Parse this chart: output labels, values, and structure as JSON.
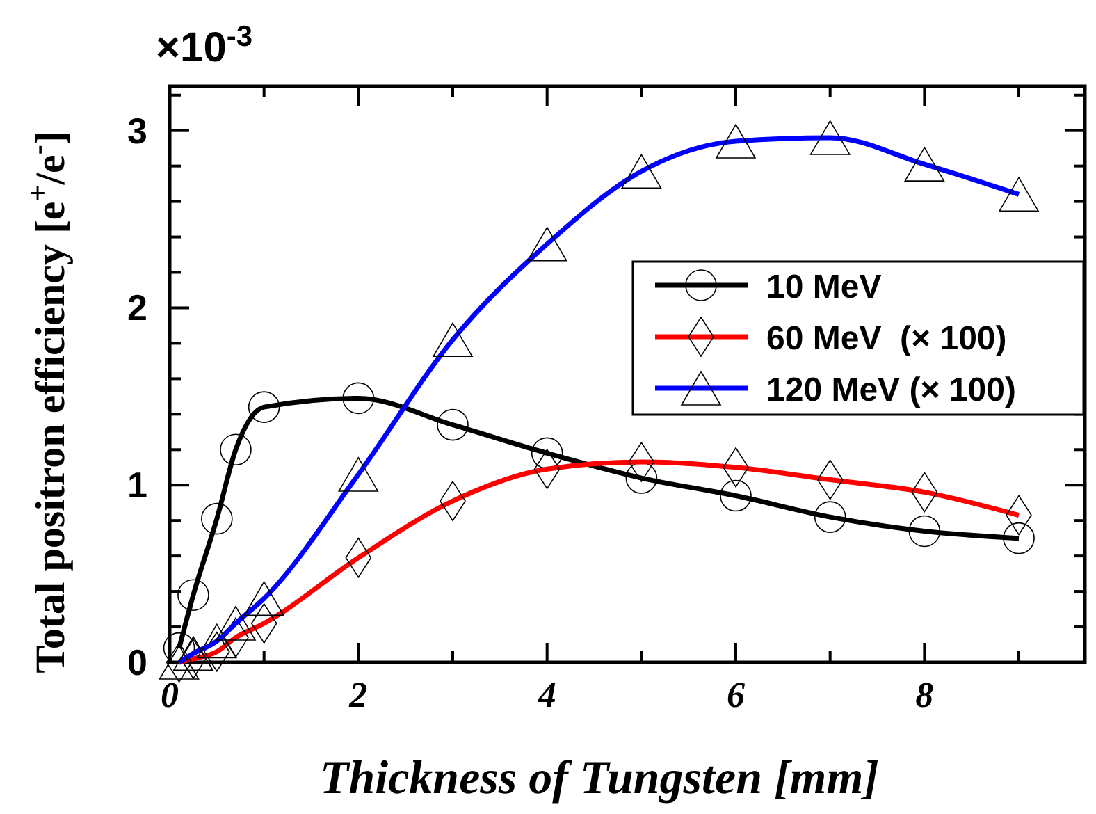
{
  "chart_data": {
    "type": "line",
    "xlabel": "Thickness of Tungsten [mm]",
    "ylabel": "Total positron efficiency [e$^{+}$/e$^{-}$]",
    "annotations": [
      "×10$^{-3}$"
    ],
    "x": [
      0.1,
      0.25,
      0.5,
      0.7,
      1,
      2,
      3,
      4,
      5,
      6,
      7,
      8,
      9
    ],
    "xlim": [
      0,
      9.7
    ],
    "ylim": [
      0,
      3.25
    ],
    "xticks": [
      0,
      {
        "value": 1,
        "label": null
      },
      2,
      {
        "value": 3,
        "label": null
      },
      4,
      {
        "value": 5,
        "label": null
      },
      6,
      {
        "value": 7,
        "label": null
      },
      8,
      {
        "value": 9,
        "label": null
      }
    ],
    "yticks": [
      0,
      {
        "value": 0.2,
        "label": null
      },
      {
        "value": 0.4,
        "label": null
      },
      {
        "value": 0.6,
        "label": null
      },
      {
        "value": 0.8,
        "label": null
      },
      1,
      {
        "value": 1.2,
        "label": null
      },
      {
        "value": 1.4,
        "label": null
      },
      {
        "value": 1.6,
        "label": null
      },
      {
        "value": 1.8,
        "label": null
      },
      2,
      {
        "value": 2.2,
        "label": null
      },
      {
        "value": 2.4,
        "label": null
      },
      {
        "value": 2.6,
        "label": null
      },
      {
        "value": 2.8,
        "label": null
      },
      3,
      {
        "value": 3.2,
        "label": null
      }
    ],
    "legend": "right",
    "grid": false,
    "line_style": "solid",
    "series": [
      {
        "name": "10 MeV",
        "color": "#000000",
        "marker": "circle",
        "values": [
          0.08,
          0.38,
          0.81,
          1.2,
          1.44,
          1.49,
          1.34,
          1.18,
          1.04,
          0.94,
          0.82,
          0.74,
          0.7
        ]
      },
      {
        "name": "60 MeV  (× 100)",
        "color": "#ff0000",
        "marker": "diamond",
        "values": [
          0.0,
          0.02,
          0.06,
          0.14,
          0.22,
          0.59,
          0.91,
          1.09,
          1.13,
          1.1,
          1.03,
          0.96,
          0.83
        ]
      },
      {
        "name": "120 MeV (× 100)",
        "color": "#0000ff",
        "marker": "triangle",
        "values": [
          0.0,
          0.05,
          0.12,
          0.22,
          0.36,
          1.06,
          1.82,
          2.36,
          2.77,
          2.94,
          2.96,
          2.81,
          2.64
        ]
      }
    ]
  }
}
